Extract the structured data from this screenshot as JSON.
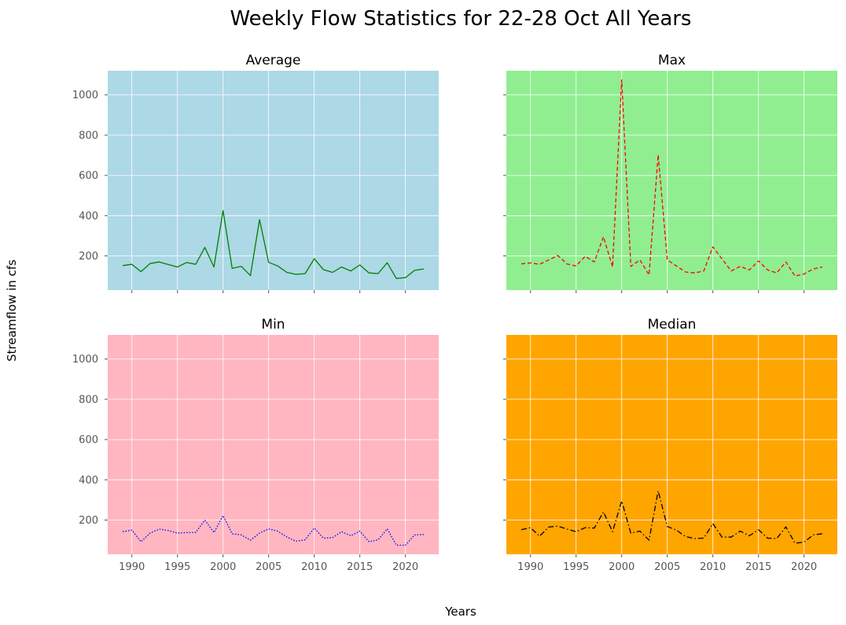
{
  "figure": {
    "title": "Weekly Flow Statistics for 22-28 Oct All Years",
    "xlabel": "Years",
    "ylabel": "Streamflow in cfs"
  },
  "chart_data": [
    {
      "type": "line",
      "title": "Average",
      "background": "#add8e6",
      "line_color": "#008000",
      "line_style": "solid",
      "x": [
        1989,
        1990,
        1991,
        1992,
        1993,
        1994,
        1995,
        1996,
        1997,
        1998,
        1999,
        2000,
        2001,
        2002,
        2003,
        2004,
        2005,
        2006,
        2007,
        2008,
        2009,
        2010,
        2011,
        2012,
        2013,
        2014,
        2015,
        2016,
        2017,
        2018,
        2019,
        2020,
        2021,
        2022
      ],
      "values": [
        152,
        158,
        122,
        162,
        170,
        157,
        145,
        167,
        158,
        242,
        145,
        425,
        138,
        148,
        102,
        380,
        168,
        150,
        118,
        108,
        112,
        186,
        132,
        118,
        145,
        125,
        155,
        115,
        112,
        166,
        88,
        92,
        128,
        135
      ],
      "xlim": [
        1987.35,
        2023.65
      ],
      "ylim": [
        30,
        1120
      ],
      "xticks": [
        1990,
        1995,
        2000,
        2005,
        2010,
        2015,
        2020
      ],
      "yticks": [
        200,
        400,
        600,
        800,
        1000
      ],
      "grid": true
    },
    {
      "type": "line",
      "title": "Max",
      "background": "#90ee90",
      "line_color": "#ff0000",
      "line_style": "dashed",
      "x": [
        1989,
        1990,
        1991,
        1992,
        1993,
        1994,
        1995,
        1996,
        1997,
        1998,
        1999,
        2000,
        2001,
        2002,
        2003,
        2004,
        2005,
        2006,
        2007,
        2008,
        2009,
        2010,
        2011,
        2012,
        2013,
        2014,
        2015,
        2016,
        2017,
        2018,
        2019,
        2020,
        2021,
        2022
      ],
      "values": [
        160,
        165,
        158,
        180,
        202,
        160,
        150,
        198,
        170,
        295,
        145,
        1075,
        148,
        180,
        105,
        702,
        180,
        150,
        120,
        115,
        125,
        245,
        185,
        125,
        148,
        130,
        175,
        130,
        115,
        170,
        100,
        110,
        135,
        145
      ],
      "xlim": [
        1987.35,
        2023.65
      ],
      "ylim": [
        30,
        1120
      ],
      "xticks": [
        1990,
        1995,
        2000,
        2005,
        2010,
        2015,
        2020
      ],
      "yticks": [
        200,
        400,
        600,
        800,
        1000
      ],
      "grid": true
    },
    {
      "type": "line",
      "title": "Min",
      "background": "#ffb6c1",
      "line_color": "#0000ff",
      "line_style": "dotted",
      "x": [
        1989,
        1990,
        1991,
        1992,
        1993,
        1994,
        1995,
        1996,
        1997,
        1998,
        1999,
        2000,
        2001,
        2002,
        2003,
        2004,
        2005,
        2006,
        2007,
        2008,
        2009,
        2010,
        2011,
        2012,
        2013,
        2014,
        2015,
        2016,
        2017,
        2018,
        2019,
        2020,
        2021,
        2022
      ],
      "values": [
        142,
        150,
        92,
        135,
        155,
        148,
        135,
        138,
        138,
        200,
        138,
        222,
        132,
        126,
        100,
        135,
        156,
        145,
        115,
        95,
        102,
        160,
        110,
        112,
        142,
        122,
        145,
        92,
        102,
        156,
        75,
        75,
        126,
        128
      ],
      "xlim": [
        1987.35,
        2023.65
      ],
      "ylim": [
        30,
        1120
      ],
      "xticks": [
        1990,
        1995,
        2000,
        2005,
        2010,
        2015,
        2020
      ],
      "yticks": [
        200,
        400,
        600,
        800,
        1000
      ],
      "grid": true
    },
    {
      "type": "line",
      "title": "Median",
      "background": "#ffa500",
      "line_color": "#000000",
      "line_style": "dashdot",
      "x": [
        1989,
        1990,
        1991,
        1992,
        1993,
        1994,
        1995,
        1996,
        1997,
        1998,
        1999,
        2000,
        2001,
        2002,
        2003,
        2004,
        2005,
        2006,
        2007,
        2008,
        2009,
        2010,
        2011,
        2012,
        2013,
        2014,
        2015,
        2016,
        2017,
        2018,
        2019,
        2020,
        2021,
        2022
      ],
      "values": [
        152,
        162,
        120,
        165,
        170,
        155,
        142,
        162,
        160,
        240,
        142,
        295,
        135,
        145,
        100,
        345,
        168,
        150,
        118,
        108,
        110,
        182,
        115,
        115,
        145,
        122,
        152,
        110,
        108,
        166,
        85,
        90,
        126,
        132
      ],
      "xlim": [
        1987.35,
        2023.65
      ],
      "ylim": [
        30,
        1120
      ],
      "xticks": [
        1990,
        1995,
        2000,
        2005,
        2010,
        2015,
        2020
      ],
      "yticks": [
        200,
        400,
        600,
        800,
        1000
      ],
      "grid": true
    }
  ]
}
